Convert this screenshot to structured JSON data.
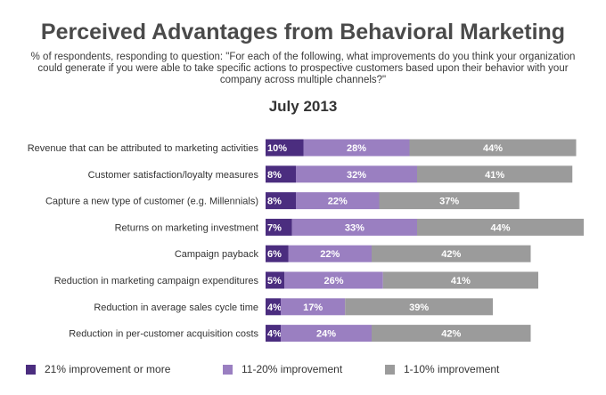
{
  "title": "Perceived Advantages from Behavioral Marketing",
  "subtitle": "% of respondents, responding to question: \"For each of the following, what improvements do you think your organization could generate if you were able to take specific actions to prospective customers based upon their behavior with your company across multiple channels?\"",
  "period": "July 2013",
  "colors": {
    "s21": "#4b2d7f",
    "s11": "#9a7fc1",
    "s1": "#9b9b9b"
  },
  "chart_data": {
    "type": "bar",
    "orientation": "horizontal",
    "stacked": true,
    "categories": [
      "Revenue that can be attributed to marketing activities",
      "Customer satisfaction/loyalty measures",
      "Capture a new type of customer (e.g. Millennials)",
      "Returns on marketing investment",
      "Campaign payback",
      "Reduction in marketing campaign expenditures",
      "Reduction in average sales cycle time",
      "Reduction in per-customer acquisition costs"
    ],
    "series": [
      {
        "name": "21% improvement or more",
        "color_key": "s21",
        "values": [
          10,
          8,
          8,
          7,
          6,
          5,
          4,
          4
        ],
        "labels": [
          "10%",
          "8%",
          "8%",
          "7%",
          "6%",
          "5%",
          "4%",
          "4%"
        ]
      },
      {
        "name": "11-20% improvement",
        "color_key": "s11",
        "values": [
          28,
          32,
          22,
          33,
          22,
          26,
          17,
          24
        ],
        "labels": [
          "28%",
          "32%",
          "22%",
          "33%",
          "22%",
          "26%",
          "17%",
          "24%"
        ]
      },
      {
        "name": "1-10% improvement",
        "color_key": "s1",
        "values": [
          44,
          41,
          37,
          44,
          42,
          41,
          39,
          42
        ],
        "labels": [
          "44%",
          "41%",
          "37%",
          "44%",
          "42%",
          "41%",
          "39%",
          "42%"
        ]
      }
    ],
    "xlim": [
      0,
      84
    ],
    "legend_position": "bottom"
  }
}
